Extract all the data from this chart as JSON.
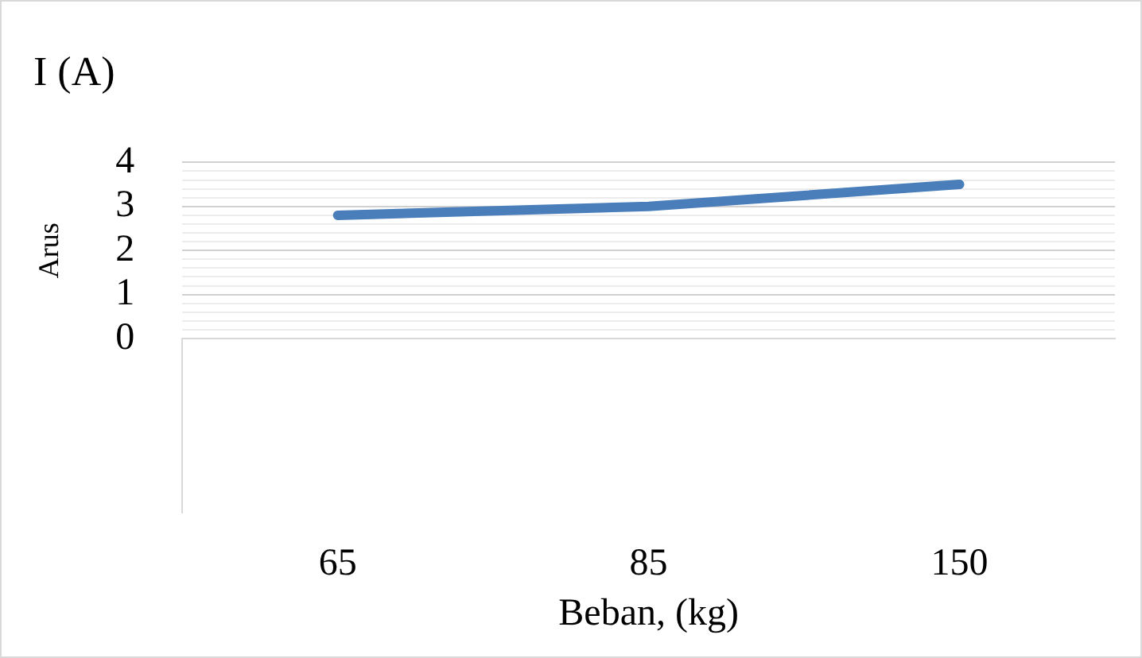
{
  "chart_data": {
    "type": "line",
    "title": "I (A)",
    "ylabel": "Arus",
    "xlabel": "Beban, (kg)",
    "categories": [
      "65",
      "85",
      "150"
    ],
    "series": [
      {
        "color": "#4a7ebb",
        "values": [
          2.8,
          3.0,
          3.5
        ]
      }
    ],
    "ylim": [
      0,
      4
    ],
    "yticks": [
      0,
      {
        "value": 0.2,
        "label": null
      },
      {
        "value": 0.4,
        "label": null
      },
      {
        "value": 0.6,
        "label": null
      },
      {
        "value": 0.8,
        "label": null
      },
      1,
      {
        "value": 1.2,
        "label": null
      },
      {
        "value": 1.4,
        "label": null
      },
      {
        "value": 1.6,
        "label": null
      },
      {
        "value": 1.8,
        "label": null
      },
      2,
      {
        "value": 2.2,
        "label": null
      },
      {
        "value": 2.4,
        "label": null
      },
      {
        "value": 2.6,
        "label": null
      },
      {
        "value": 2.8,
        "label": null
      },
      3,
      {
        "value": 3.2,
        "label": null
      },
      {
        "value": 3.4,
        "label": null
      },
      {
        "value": 3.6,
        "label": null
      },
      {
        "value": 3.8,
        "label": null
      },
      4
    ],
    "grid": "y",
    "legend": false,
    "marker": "none",
    "line_style": "solid"
  }
}
